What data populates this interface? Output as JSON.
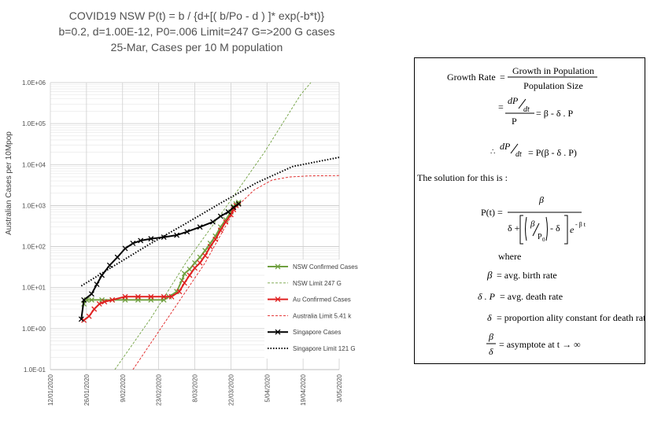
{
  "title": {
    "line1": "COVID19 NSW P(t) = b / {d+[( b/Po - d ) ]* exp(-b*t)}",
    "line2": "b=0.2, d=1.00E-12, P0=.006 Limit=247 G=>200 G cases",
    "line3": "25-Mar, Cases per 10 M population"
  },
  "chart_data": {
    "type": "line",
    "ylabel": "Australian Cases per 10Mpop",
    "yscale": "log",
    "ylim": [
      0.1,
      1000000
    ],
    "y_ticks": [
      "1.0E-01",
      "1.0E+00",
      "1.0E+01",
      "1.0E+02",
      "1.0E+03",
      "1.0E+04",
      "1.0E+05",
      "1.0E+06"
    ],
    "xlim": [
      "2020-01-12",
      "2020-05-03"
    ],
    "x_ticks": [
      "12/01/2020",
      "26/01/2020",
      "9/02/2020",
      "23/02/2020",
      "8/03/2020",
      "22/03/2020",
      "5/04/2020",
      "19/04/2020",
      "3/05/2020"
    ],
    "grid": true,
    "legend_position": "bottom-right",
    "series": [
      {
        "name": "NSW Confirmed Cases",
        "color": "#70a040",
        "style": "solid",
        "marker": "x",
        "points": [
          [
            "2020-01-25",
            4
          ],
          [
            "2020-01-26",
            5
          ],
          [
            "2020-01-28",
            5
          ],
          [
            "2020-02-01",
            5
          ],
          [
            "2020-02-05",
            5
          ],
          [
            "2020-02-10",
            5
          ],
          [
            "2020-02-15",
            5
          ],
          [
            "2020-02-20",
            5
          ],
          [
            "2020-02-25",
            5
          ],
          [
            "2020-02-27",
            6
          ],
          [
            "2020-03-01",
            8
          ],
          [
            "2020-03-03",
            15
          ],
          [
            "2020-03-04",
            22
          ],
          [
            "2020-03-06",
            28
          ],
          [
            "2020-03-08",
            40
          ],
          [
            "2020-03-10",
            55
          ],
          [
            "2020-03-12",
            80
          ],
          [
            "2020-03-14",
            120
          ],
          [
            "2020-03-16",
            180
          ],
          [
            "2020-03-18",
            300
          ],
          [
            "2020-03-20",
            450
          ],
          [
            "2020-03-22",
            700
          ],
          [
            "2020-03-23",
            950
          ],
          [
            "2020-03-24",
            1100
          ],
          [
            "2020-03-25",
            1200
          ]
        ]
      },
      {
        "name": "NSW Limit 247 G",
        "color": "#70a040",
        "style": "dashed",
        "marker": "none",
        "points": [
          [
            "2020-02-06",
            0.1
          ],
          [
            "2020-02-20",
            1.8
          ],
          [
            "2020-03-05",
            45
          ],
          [
            "2020-03-20",
            900
          ],
          [
            "2020-04-04",
            20000
          ],
          [
            "2020-04-18",
            500000
          ],
          [
            "2020-04-22",
            1000000
          ]
        ]
      },
      {
        "name": "Au Confirmed Cases",
        "color": "#e02020",
        "style": "solid",
        "marker": "x",
        "points": [
          [
            "2020-01-25",
            1.6
          ],
          [
            "2020-01-27",
            2
          ],
          [
            "2020-01-29",
            3
          ],
          [
            "2020-01-31",
            4
          ],
          [
            "2020-02-02",
            4.5
          ],
          [
            "2020-02-05",
            5
          ],
          [
            "2020-02-10",
            6
          ],
          [
            "2020-02-15",
            6
          ],
          [
            "2020-02-20",
            6
          ],
          [
            "2020-02-25",
            6
          ],
          [
            "2020-02-28",
            6
          ],
          [
            "2020-03-02",
            8
          ],
          [
            "2020-03-04",
            13
          ],
          [
            "2020-03-06",
            20
          ],
          [
            "2020-03-08",
            30
          ],
          [
            "2020-03-10",
            40
          ],
          [
            "2020-03-12",
            60
          ],
          [
            "2020-03-14",
            100
          ],
          [
            "2020-03-16",
            150
          ],
          [
            "2020-03-18",
            250
          ],
          [
            "2020-03-20",
            400
          ],
          [
            "2020-03-22",
            600
          ],
          [
            "2020-03-23",
            800
          ],
          [
            "2020-03-24",
            1000
          ],
          [
            "2020-03-25",
            1100
          ]
        ]
      },
      {
        "name": "Australia Limit 5.41 k",
        "color": "#e02020",
        "style": "dashed",
        "marker": "none",
        "points": [
          [
            "2020-02-13",
            0.1
          ],
          [
            "2020-02-27",
            2
          ],
          [
            "2020-03-12",
            40
          ],
          [
            "2020-03-24",
            900
          ],
          [
            "2020-03-31",
            2400
          ],
          [
            "2020-04-07",
            4200
          ],
          [
            "2020-04-14",
            5000
          ],
          [
            "2020-04-21",
            5300
          ],
          [
            "2020-05-03",
            5410
          ]
        ]
      },
      {
        "name": "Singapore Cases",
        "color": "#000000",
        "style": "solid",
        "marker": "x",
        "points": [
          [
            "2020-01-24",
            1.7
          ],
          [
            "2020-01-25",
            5
          ],
          [
            "2020-01-28",
            7
          ],
          [
            "2020-01-30",
            12
          ],
          [
            "2020-02-01",
            20
          ],
          [
            "2020-02-04",
            35
          ],
          [
            "2020-02-07",
            55
          ],
          [
            "2020-02-10",
            90
          ],
          [
            "2020-02-13",
            120
          ],
          [
            "2020-02-16",
            140
          ],
          [
            "2020-02-20",
            155
          ],
          [
            "2020-02-25",
            170
          ],
          [
            "2020-03-01",
            190
          ],
          [
            "2020-03-05",
            230
          ],
          [
            "2020-03-10",
            300
          ],
          [
            "2020-03-15",
            400
          ],
          [
            "2020-03-18",
            550
          ],
          [
            "2020-03-21",
            700
          ],
          [
            "2020-03-23",
            900
          ],
          [
            "2020-03-25",
            1100
          ]
        ]
      },
      {
        "name": "Singapore Limit 121 G",
        "color": "#000000",
        "style": "dotted",
        "marker": "none",
        "points": [
          [
            "2020-01-24",
            11
          ],
          [
            "2020-02-05",
            32
          ],
          [
            "2020-02-19",
            110
          ],
          [
            "2020-03-04",
            350
          ],
          [
            "2020-03-18",
            1150
          ],
          [
            "2020-04-01",
            3600
          ],
          [
            "2020-04-15",
            9000
          ],
          [
            "2020-05-03",
            15000
          ]
        ]
      }
    ]
  },
  "formula": {
    "growth_rate": "Growth Rate",
    "growth_in_population": "Growth  in Population",
    "population_size": "Population  Size",
    "solution": "The solution for this is :",
    "where": "where",
    "beta_def": "= avg. birth rate",
    "death_def": "= avg. death rate",
    "delta_def": "= proportion ality constant  for death rate",
    "asymptote_def": "= asymptote at t → ∞"
  }
}
